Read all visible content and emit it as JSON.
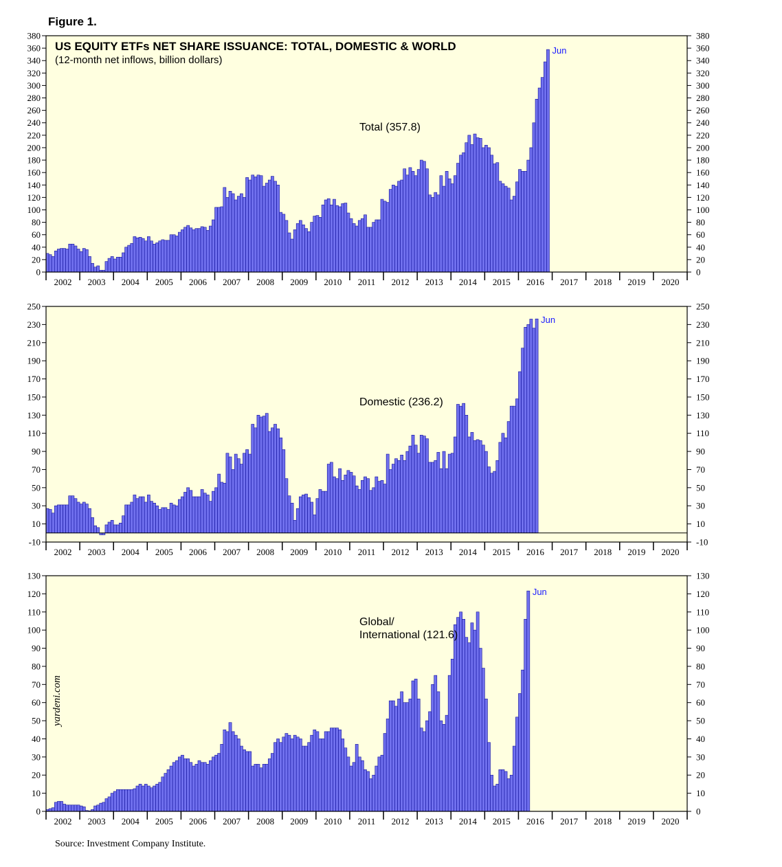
{
  "figure_label": "Figure 1.",
  "source": "Source: Investment Company Institute.",
  "watermark": "yardeni.com",
  "colors": {
    "bar_fill": "#7070ee",
    "bar_stroke": "#10109a",
    "plot_bg": "#ffffe0",
    "accent_text": "#1a1aff"
  },
  "chart_data": [
    {
      "type": "bar",
      "title": "US EQUITY ETFs NET SHARE ISSUANCE: TOTAL, DOMESTIC & WORLD",
      "subtitle": "(12-month net inflows, billion dollars)",
      "series_label": "Total (357.8)",
      "end_label": "Jun",
      "x_start": "2002-01",
      "x_labels": [
        "2002",
        "2003",
        "2004",
        "2005",
        "2006",
        "2007",
        "2008",
        "2009",
        "2010",
        "2011",
        "2012",
        "2013",
        "2014",
        "2015",
        "2016",
        "2017",
        "2018",
        "2019",
        "2020"
      ],
      "ylim": [
        0,
        380
      ],
      "yticks": [
        0,
        20,
        40,
        60,
        80,
        100,
        120,
        140,
        160,
        180,
        200,
        220,
        240,
        260,
        280,
        300,
        320,
        340,
        360,
        380
      ],
      "values": [
        30,
        28,
        25,
        34,
        37,
        38,
        38,
        37,
        45,
        45,
        42,
        37,
        33,
        38,
        36,
        25,
        14,
        8,
        10,
        3,
        3,
        17,
        22,
        25,
        21,
        24,
        24,
        31,
        40,
        43,
        46,
        57,
        55,
        56,
        54,
        50,
        57,
        50,
        45,
        47,
        50,
        52,
        51,
        51,
        60,
        60,
        58,
        64,
        68,
        72,
        75,
        71,
        68,
        70,
        70,
        73,
        72,
        67,
        74,
        84,
        104,
        104,
        105,
        136,
        120,
        130,
        126,
        116,
        122,
        126,
        120,
        152,
        148,
        156,
        153,
        156,
        155,
        138,
        143,
        148,
        154,
        146,
        140,
        96,
        93,
        83,
        63,
        53,
        68,
        78,
        83,
        76,
        70,
        65,
        80,
        90,
        91,
        88,
        108,
        116,
        118,
        108,
        117,
        107,
        105,
        110,
        111,
        95,
        86,
        78,
        74,
        83,
        86,
        92,
        72,
        72,
        80,
        84,
        84,
        117,
        114,
        112,
        133,
        140,
        138,
        146,
        148,
        166,
        156,
        168,
        162,
        155,
        165,
        180,
        178,
        166,
        124,
        120,
        128,
        124,
        155,
        138,
        162,
        150,
        142,
        155,
        175,
        188,
        192,
        208,
        220,
        205,
        222,
        216,
        215,
        200,
        204,
        200,
        188,
        174,
        176,
        146,
        142,
        138,
        135,
        116,
        122,
        145,
        165,
        162,
        162,
        180,
        200,
        240,
        278,
        296,
        313,
        338,
        357.8
      ]
    },
    {
      "type": "bar",
      "series_label": "Domestic (236.2)",
      "end_label": "Jun",
      "x_start": "2002-01",
      "x_labels": [
        "2002",
        "2003",
        "2004",
        "2005",
        "2006",
        "2007",
        "2008",
        "2009",
        "2010",
        "2011",
        "2012",
        "2013",
        "2014",
        "2015",
        "2016",
        "2017",
        "2018",
        "2019",
        "2020"
      ],
      "ylim": [
        -10,
        250
      ],
      "yticks": [
        -10,
        10,
        30,
        50,
        70,
        90,
        110,
        130,
        150,
        170,
        190,
        210,
        230,
        250
      ],
      "values": [
        27,
        26,
        22,
        30,
        31,
        31,
        31,
        31,
        41,
        41,
        38,
        34,
        32,
        34,
        32,
        27,
        17,
        8,
        6,
        -2,
        -2,
        9,
        12,
        14,
        9,
        9,
        11,
        19,
        31,
        31,
        34,
        42,
        38,
        40,
        40,
        34,
        42,
        35,
        33,
        30,
        26,
        28,
        28,
        26,
        33,
        31,
        30,
        37,
        40,
        45,
        50,
        47,
        40,
        40,
        40,
        48,
        44,
        42,
        35,
        46,
        50,
        65,
        56,
        55,
        88,
        84,
        70,
        87,
        82,
        76,
        88,
        92,
        87,
        120,
        116,
        130,
        128,
        129,
        132,
        112,
        116,
        120,
        115,
        105,
        92,
        60,
        41,
        33,
        14,
        27,
        40,
        42,
        43,
        39,
        34,
        20,
        38,
        48,
        46,
        46,
        76,
        78,
        62,
        60,
        71,
        58,
        64,
        69,
        67,
        63,
        52,
        48,
        58,
        62,
        60,
        47,
        50,
        62,
        57,
        58,
        54,
        87,
        70,
        76,
        82,
        80,
        86,
        80,
        90,
        96,
        108,
        97,
        88,
        108,
        107,
        104,
        78,
        78,
        80,
        89,
        71,
        90,
        71,
        87,
        88,
        106,
        142,
        140,
        143,
        130,
        106,
        111,
        102,
        103,
        102,
        97,
        90,
        73,
        66,
        68,
        80,
        100,
        110,
        105,
        123,
        140,
        140,
        148,
        178,
        204,
        227,
        230,
        236,
        226,
        236.2
      ]
    },
    {
      "type": "bar",
      "series_label": "Global/\nInternational (121.6)",
      "end_label": "Jun",
      "x_start": "2002-01",
      "x_labels": [
        "2002",
        "2003",
        "2004",
        "2005",
        "2006",
        "2007",
        "2008",
        "2009",
        "2010",
        "2011",
        "2012",
        "2013",
        "2014",
        "2015",
        "2016",
        "2017",
        "2018",
        "2019",
        "2020"
      ],
      "ylim": [
        0,
        130
      ],
      "yticks": [
        0,
        10,
        20,
        30,
        40,
        50,
        60,
        70,
        80,
        90,
        100,
        110,
        120,
        130
      ],
      "values": [
        1,
        1.5,
        2,
        5,
        5.5,
        5.5,
        4,
        3.5,
        3.5,
        3.5,
        3.5,
        3.5,
        3,
        2.5,
        0.5,
        0.3,
        1,
        3,
        3.5,
        4.5,
        5,
        7,
        8,
        10,
        11,
        12,
        12,
        12,
        12,
        12,
        12,
        12.5,
        14,
        15,
        14,
        15,
        14,
        13,
        14,
        15,
        16,
        19,
        21,
        23,
        25,
        27,
        28,
        30,
        31,
        29,
        29,
        27,
        25,
        26,
        28,
        27,
        27,
        26,
        28,
        30,
        31,
        32,
        37,
        45,
        44,
        49,
        44,
        42,
        40,
        36,
        34,
        33,
        33,
        25,
        26,
        26,
        24,
        26,
        26,
        29,
        32,
        38,
        40,
        38,
        41,
        43,
        42,
        40,
        42,
        41,
        40,
        36,
        36,
        38,
        42,
        45,
        44,
        40,
        40,
        44,
        44,
        46,
        46,
        46,
        45,
        40,
        35,
        30,
        25,
        27,
        37,
        30,
        28,
        23,
        22,
        18,
        20,
        25,
        30,
        31,
        43,
        51,
        61,
        61,
        58,
        62,
        66,
        60,
        60,
        62,
        72,
        73,
        62,
        46,
        44,
        50,
        55,
        70,
        75,
        66,
        50,
        48,
        53,
        75,
        84,
        103,
        107,
        110,
        106,
        96,
        93,
        104,
        100,
        110,
        90,
        79,
        62,
        38,
        20,
        14,
        15,
        23,
        23,
        22,
        18,
        20,
        36,
        52,
        65,
        78,
        106,
        121.6
      ]
    }
  ]
}
